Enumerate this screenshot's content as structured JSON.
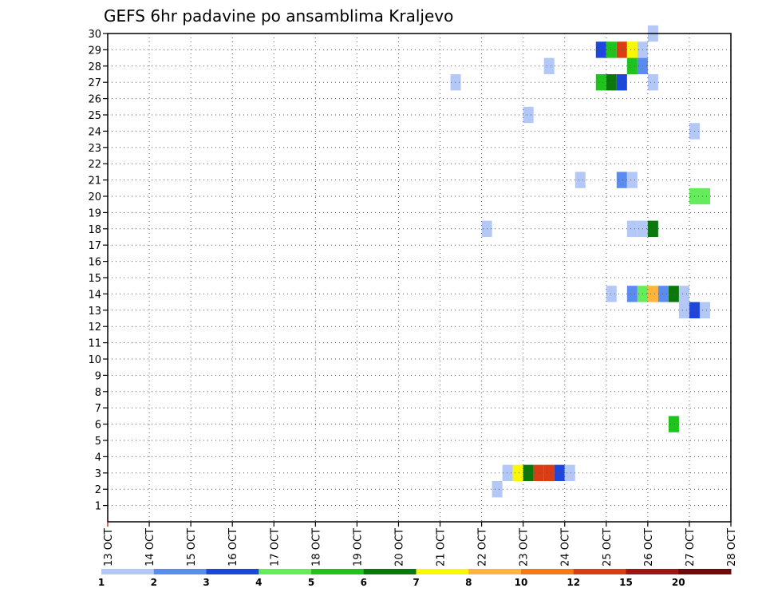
{
  "chart_data": {
    "type": "heatmap",
    "title": "GEFS 6hr padavine po ansamblima Kraljevo",
    "x_tick_labels": [
      "13 OCT",
      "14 OCT",
      "15 OCT",
      "16 OCT",
      "17 OCT",
      "18 OCT",
      "19 OCT",
      "20 OCT",
      "21 OCT",
      "22 OCT",
      "23 OCT",
      "24 OCT",
      "25 OCT",
      "26 OCT",
      "27 OCT",
      "28 OCT"
    ],
    "y_tick_labels": [
      "1",
      "2",
      "3",
      "4",
      "5",
      "6",
      "7",
      "8",
      "9",
      "10",
      "11",
      "12",
      "13",
      "14",
      "15",
      "16",
      "17",
      "18",
      "19",
      "20",
      "21",
      "22",
      "23",
      "24",
      "25",
      "26",
      "27",
      "28",
      "29",
      "30"
    ],
    "x_range_days": [
      13,
      28
    ],
    "y_range": [
      0,
      30
    ],
    "grid": true,
    "cell_duration_hours": 6,
    "colorbar_ticks": [
      "1",
      "2",
      "3",
      "4",
      "5",
      "6",
      "7",
      "8",
      "10",
      "12",
      "15",
      "20"
    ],
    "levels": [
      {
        "min": 1,
        "color": "#b4c8f8"
      },
      {
        "min": 2,
        "color": "#5a8cf0"
      },
      {
        "min": 3,
        "color": "#1e46dc"
      },
      {
        "min": 4,
        "color": "#64ec5a"
      },
      {
        "min": 5,
        "color": "#1ec31e"
      },
      {
        "min": 6,
        "color": "#0a780a"
      },
      {
        "min": 7,
        "color": "#f8f800"
      },
      {
        "min": 8,
        "color": "#ffb43c"
      },
      {
        "min": 10,
        "color": "#f87814"
      },
      {
        "min": 12,
        "color": "#dc3c14"
      },
      {
        "min": 15,
        "color": "#a01414"
      },
      {
        "min": 20,
        "color": "#6e0a0a"
      }
    ],
    "cells": [
      {
        "member": 30,
        "day": 26.0,
        "level": 0
      },
      {
        "member": 29,
        "day": 24.75,
        "level": 2
      },
      {
        "member": 29,
        "day": 25.0,
        "level": 4
      },
      {
        "member": 29,
        "day": 25.25,
        "level": 9
      },
      {
        "member": 29,
        "day": 25.5,
        "level": 6
      },
      {
        "member": 29,
        "day": 25.75,
        "level": 0
      },
      {
        "member": 28,
        "day": 23.5,
        "level": 0
      },
      {
        "member": 28,
        "day": 25.5,
        "level": 4
      },
      {
        "member": 28,
        "day": 25.75,
        "level": 1
      },
      {
        "member": 27,
        "day": 21.25,
        "level": 0
      },
      {
        "member": 27,
        "day": 24.75,
        "level": 4
      },
      {
        "member": 27,
        "day": 25.0,
        "level": 5
      },
      {
        "member": 27,
        "day": 25.25,
        "level": 2
      },
      {
        "member": 27,
        "day": 26.0,
        "level": 0
      },
      {
        "member": 25,
        "day": 23.0,
        "level": 0
      },
      {
        "member": 24,
        "day": 27.0,
        "level": 0
      },
      {
        "member": 21,
        "day": 24.25,
        "level": 0
      },
      {
        "member": 21,
        "day": 25.25,
        "level": 1
      },
      {
        "member": 21,
        "day": 25.5,
        "level": 0
      },
      {
        "member": 20,
        "day": 27.0,
        "level": 3
      },
      {
        "member": 20,
        "day": 27.25,
        "level": 3
      },
      {
        "member": 18,
        "day": 22.0,
        "level": 0
      },
      {
        "member": 18,
        "day": 25.5,
        "level": 0
      },
      {
        "member": 18,
        "day": 25.75,
        "level": 0
      },
      {
        "member": 18,
        "day": 26.0,
        "level": 5
      },
      {
        "member": 14,
        "day": 25.0,
        "level": 0
      },
      {
        "member": 14,
        "day": 25.5,
        "level": 1
      },
      {
        "member": 14,
        "day": 25.75,
        "level": 3
      },
      {
        "member": 14,
        "day": 26.0,
        "level": 7
      },
      {
        "member": 14,
        "day": 26.25,
        "level": 1
      },
      {
        "member": 14,
        "day": 26.5,
        "level": 5
      },
      {
        "member": 14,
        "day": 26.75,
        "level": 0
      },
      {
        "member": 13,
        "day": 26.75,
        "level": 0
      },
      {
        "member": 13,
        "day": 27.0,
        "level": 2
      },
      {
        "member": 13,
        "day": 27.25,
        "level": 0
      },
      {
        "member": 6,
        "day": 26.5,
        "level": 4
      },
      {
        "member": 3,
        "day": 22.5,
        "level": 0
      },
      {
        "member": 3,
        "day": 22.75,
        "level": 6
      },
      {
        "member": 3,
        "day": 23.0,
        "level": 5
      },
      {
        "member": 3,
        "day": 23.25,
        "level": 9
      },
      {
        "member": 3,
        "day": 23.5,
        "level": 9
      },
      {
        "member": 3,
        "day": 23.75,
        "level": 2
      },
      {
        "member": 3,
        "day": 24.0,
        "level": 0
      },
      {
        "member": 2,
        "day": 22.25,
        "level": 0
      }
    ]
  }
}
